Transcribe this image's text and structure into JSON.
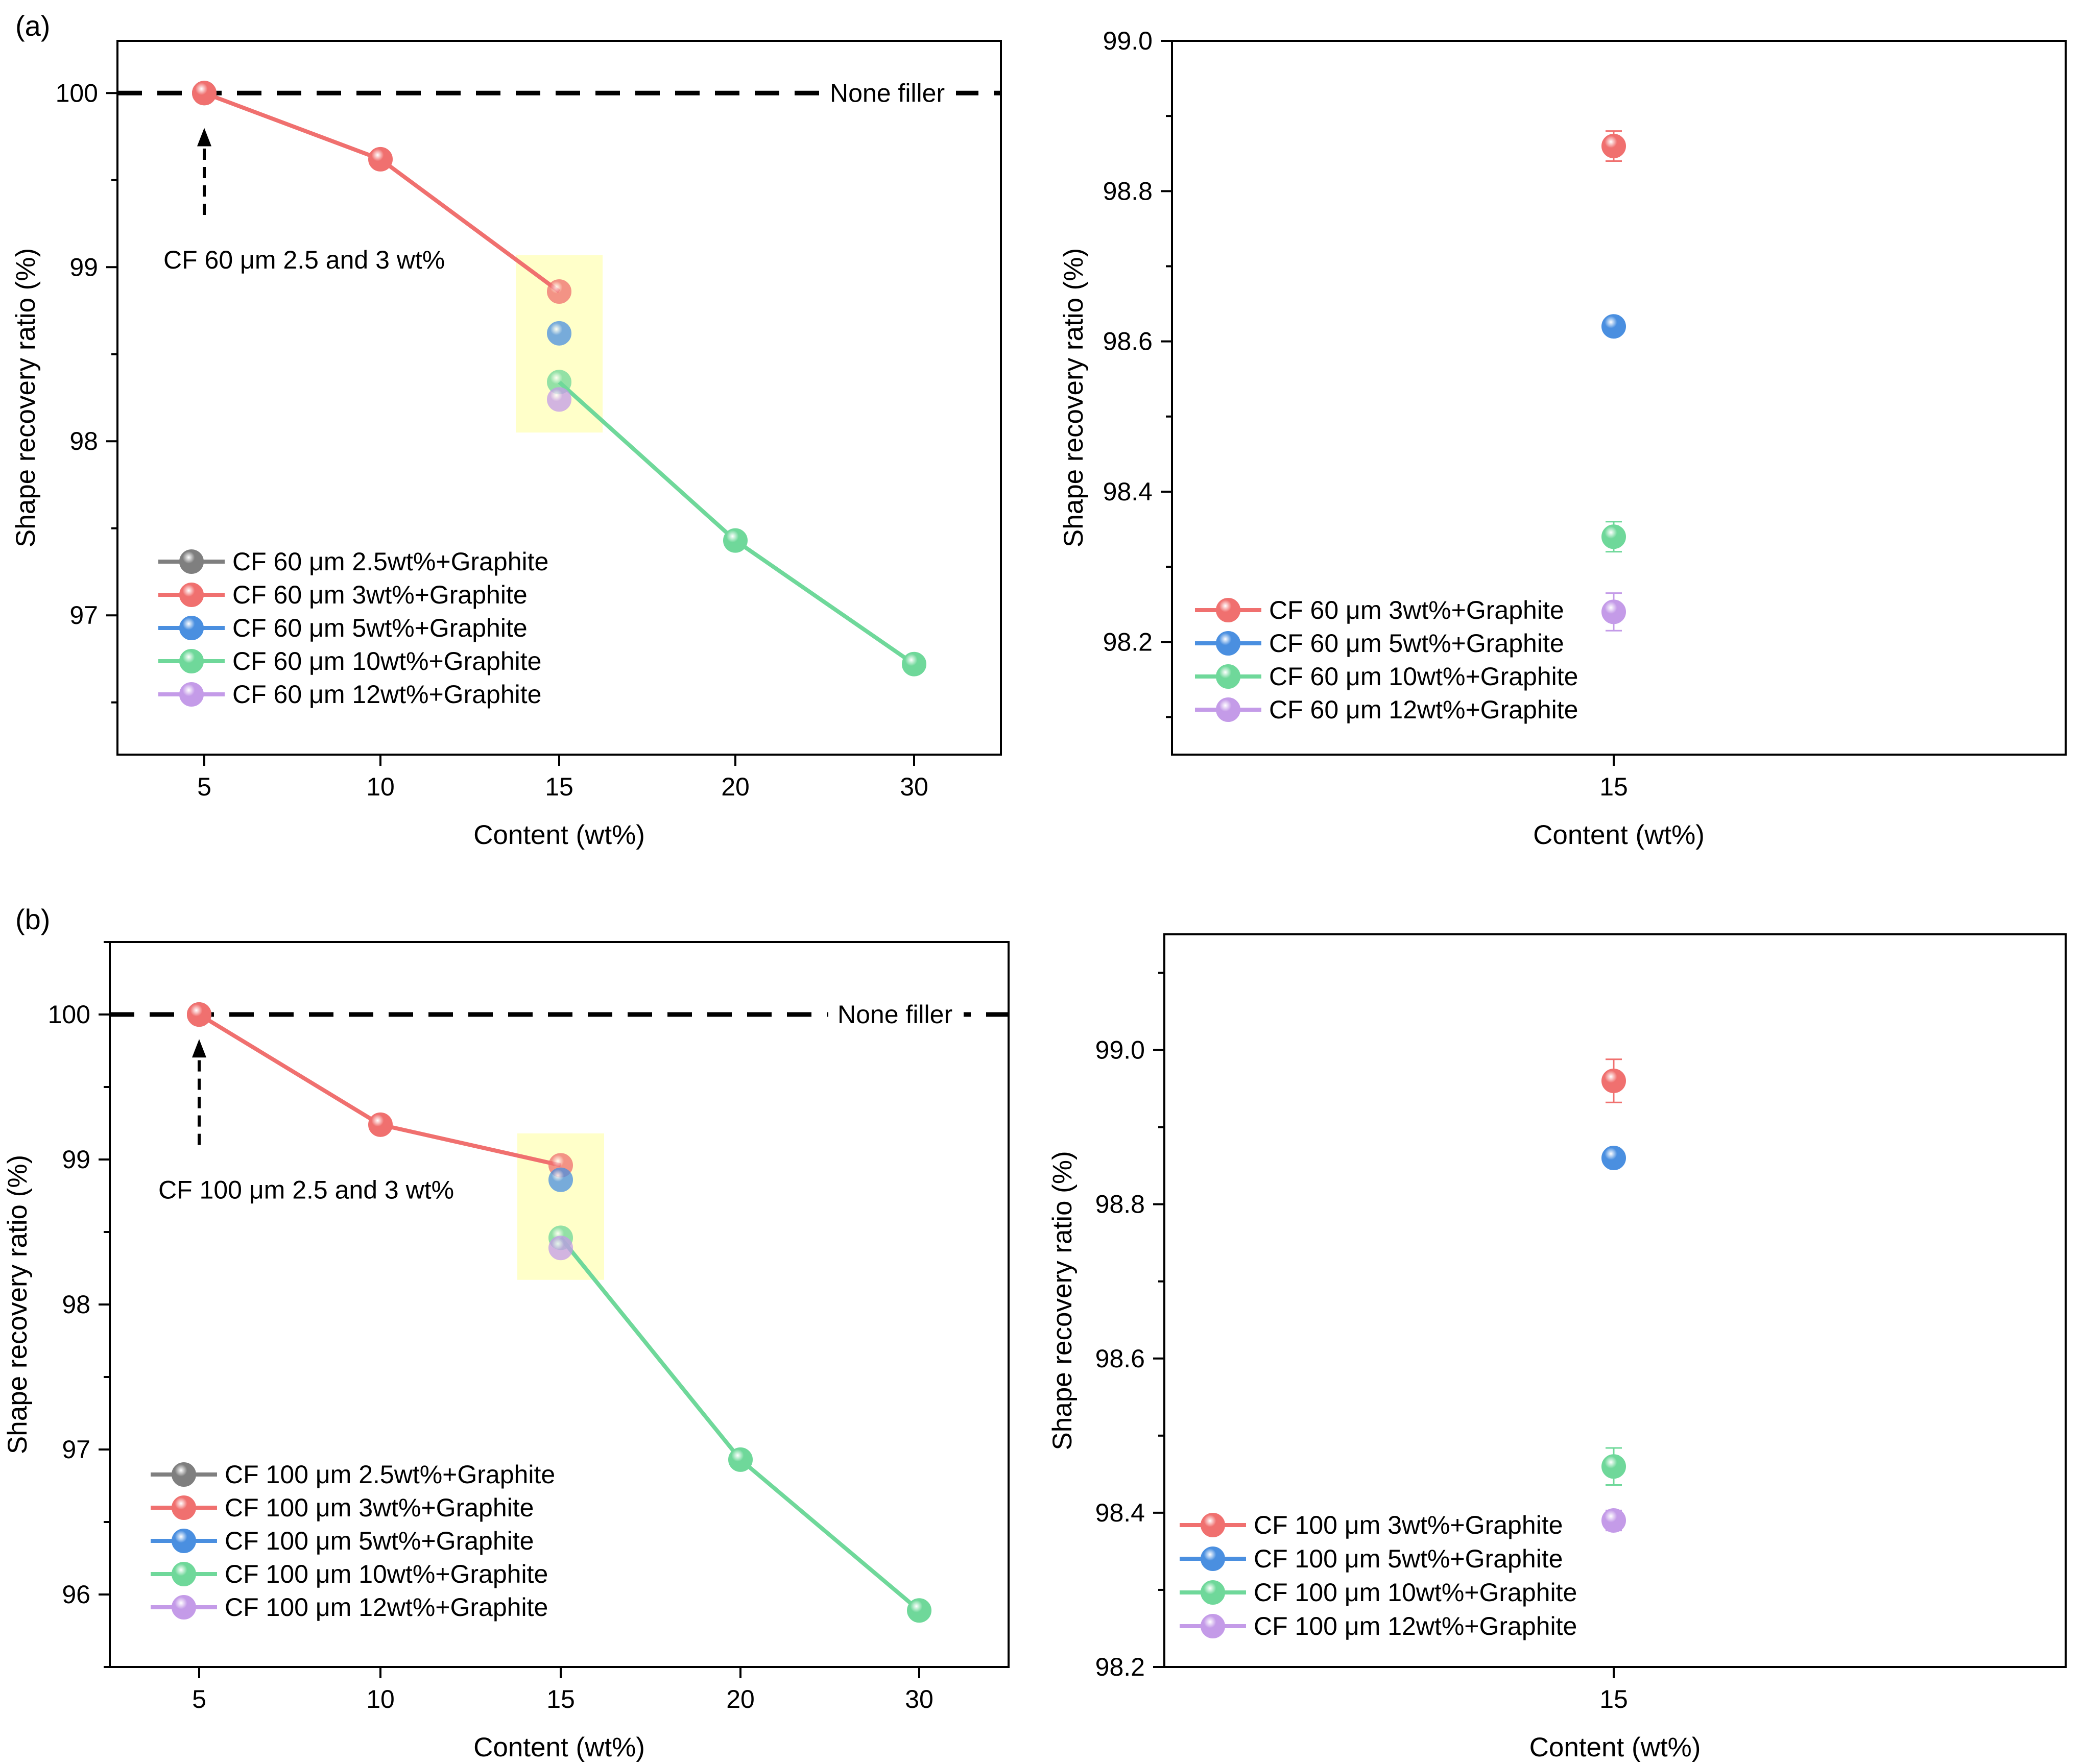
{
  "figure": {
    "panel_a_label": "(a)",
    "panel_b_label": "(b)"
  },
  "colors": {
    "grey": "#7f7f7f",
    "red": "#f0706f",
    "blue": "#4a8fe0",
    "green": "#6fd89a",
    "purple": "#c49be8",
    "highlight": "#ffffc0"
  },
  "chart_data": [
    {
      "id": "a-main",
      "type": "line",
      "xlabel": "Content (wt%)",
      "ylabel": "Shape recovery ratio (%)",
      "categories": [
        "5",
        "10",
        "15",
        "20",
        "30"
      ],
      "ylim": [
        96.2,
        100.3
      ],
      "yticks": [
        97,
        98,
        99,
        100
      ],
      "reference_line": {
        "y": 100,
        "label": "None filler"
      },
      "annotation": {
        "text": "CF 60 μm 2.5 and 3 wt%",
        "x": "5",
        "y_from": 99.3,
        "y_to": 99.8
      },
      "highlight": {
        "x": "15",
        "ymin": 98.05,
        "ymax": 99.07
      },
      "series": [
        {
          "name": "CF 60 μm 2.5wt%+Graphite",
          "color": "grey",
          "points": [
            {
              "x": "5",
              "y": 100
            }
          ]
        },
        {
          "name": "CF 60 μm 3wt%+Graphite",
          "color": "red",
          "points": [
            {
              "x": "5",
              "y": 100
            },
            {
              "x": "10",
              "y": 99.62
            },
            {
              "x": "15",
              "y": 98.86
            }
          ]
        },
        {
          "name": "CF 60 μm 5wt%+Graphite",
          "color": "blue",
          "points": [
            {
              "x": "15",
              "y": 98.62
            }
          ]
        },
        {
          "name": "CF 60 μm 10wt%+Graphite",
          "color": "green",
          "points": [
            {
              "x": "15",
              "y": 98.34
            },
            {
              "x": "20",
              "y": 97.43
            },
            {
              "x": "30",
              "y": 96.72
            }
          ]
        },
        {
          "name": "CF 60 μm 12wt%+Graphite",
          "color": "purple",
          "points": [
            {
              "x": "15",
              "y": 98.24
            }
          ]
        }
      ],
      "legend": {
        "location": "bottom-left",
        "labels": [
          "CF 60 μm 2.5wt%+Graphite",
          "CF 60 μm 3wt%+Graphite",
          "CF 60 μm 5wt%+Graphite",
          "CF 60 μm 10wt%+Graphite",
          "CF 60 μm 12wt%+Graphite"
        ]
      }
    },
    {
      "id": "a-zoom",
      "type": "scatter",
      "xlabel": "Content (wt%)",
      "ylabel": "Shape recovery ratio (%)",
      "categories": [
        "15"
      ],
      "ylim": [
        98.05,
        99.0
      ],
      "yticks": [
        "98.2",
        "98.4",
        "98.6",
        "98.8",
        "99.0"
      ],
      "series": [
        {
          "name": "CF 60 μm 3wt%+Graphite",
          "color": "red",
          "points": [
            {
              "x": "15",
              "y": 98.86,
              "err": 0.02
            }
          ]
        },
        {
          "name": "CF 60 μm 5wt%+Graphite",
          "color": "blue",
          "points": [
            {
              "x": "15",
              "y": 98.62,
              "err": 0.005
            }
          ]
        },
        {
          "name": "CF 60 μm 10wt%+Graphite",
          "color": "green",
          "points": [
            {
              "x": "15",
              "y": 98.34,
              "err": 0.02
            }
          ]
        },
        {
          "name": "CF 60 μm 12wt%+Graphite",
          "color": "purple",
          "points": [
            {
              "x": "15",
              "y": 98.24,
              "err": 0.025
            }
          ]
        }
      ],
      "legend": {
        "location": "bottom-left",
        "labels": [
          "CF 60 μm 3wt%+Graphite",
          "CF 60 μm 5wt%+Graphite",
          "CF 60 μm 10wt%+Graphite",
          "CF 60 μm 12wt%+Graphite"
        ]
      }
    },
    {
      "id": "b-main",
      "type": "line",
      "xlabel": "Content (wt%)",
      "ylabel": "Shape recovery ratio (%)",
      "categories": [
        "5",
        "10",
        "15",
        "20",
        "30"
      ],
      "ylim": [
        95.5,
        100.5
      ],
      "yticks": [
        96,
        97,
        98,
        99,
        100
      ],
      "reference_line": {
        "y": 100,
        "label": "None filler"
      },
      "annotation": {
        "text": "CF 100 μm 2.5 and 3 wt%",
        "x": "5",
        "y_from": 99.1,
        "y_to": 99.83
      },
      "highlight": {
        "x": "15",
        "ymin": 98.17,
        "ymax": 99.18
      },
      "series": [
        {
          "name": "CF 100 μm 2.5wt%+Graphite",
          "color": "grey",
          "points": [
            {
              "x": "5",
              "y": 100
            }
          ]
        },
        {
          "name": "CF 100 μm 3wt%+Graphite",
          "color": "red",
          "points": [
            {
              "x": "5",
              "y": 100
            },
            {
              "x": "10",
              "y": 99.24
            },
            {
              "x": "15",
              "y": 98.96
            }
          ]
        },
        {
          "name": "CF 100 μm 5wt%+Graphite",
          "color": "blue",
          "points": [
            {
              "x": "15",
              "y": 98.86
            }
          ]
        },
        {
          "name": "CF 100 μm 10wt%+Graphite",
          "color": "green",
          "points": [
            {
              "x": "15",
              "y": 98.46
            },
            {
              "x": "20",
              "y": 96.93
            },
            {
              "x": "30",
              "y": 95.89
            }
          ]
        },
        {
          "name": "CF 100 μm 12wt%+Graphite",
          "color": "purple",
          "points": [
            {
              "x": "15",
              "y": 98.39
            }
          ]
        }
      ],
      "legend": {
        "location": "bottom-left",
        "labels": [
          "CF 100 μm 2.5wt%+Graphite",
          "CF 100 μm 3wt%+Graphite",
          "CF 100 μm 5wt%+Graphite",
          "CF 100 μm 10wt%+Graphite",
          "CF 100 μm 12wt%+Graphite"
        ]
      }
    },
    {
      "id": "b-zoom",
      "type": "scatter",
      "xlabel": "Content (wt%)",
      "ylabel": "Shape recovery ratio (%)",
      "categories": [
        "15"
      ],
      "ylim": [
        98.2,
        99.15
      ],
      "yticks": [
        "98.2",
        "98.4",
        "98.6",
        "98.8",
        "99.0"
      ],
      "series": [
        {
          "name": "CF 100 μm 3wt%+Graphite",
          "color": "red",
          "points": [
            {
              "x": "15",
              "y": 98.96,
              "err": 0.028
            }
          ]
        },
        {
          "name": "CF 100 μm 5wt%+Graphite",
          "color": "blue",
          "points": [
            {
              "x": "15",
              "y": 98.86,
              "err": 0.005
            }
          ]
        },
        {
          "name": "CF 100 μm 10wt%+Graphite",
          "color": "green",
          "points": [
            {
              "x": "15",
              "y": 98.46,
              "err": 0.024
            }
          ]
        },
        {
          "name": "CF 100 μm 12wt%+Graphite",
          "color": "purple",
          "points": [
            {
              "x": "15",
              "y": 98.39,
              "err": 0.013
            }
          ]
        }
      ],
      "legend": {
        "location": "bottom-left",
        "labels": [
          "CF 100 μm 3wt%+Graphite",
          "CF 100 μm 5wt%+Graphite",
          "CF 100 μm 10wt%+Graphite",
          "CF 100 μm 12wt%+Graphite"
        ]
      }
    }
  ]
}
